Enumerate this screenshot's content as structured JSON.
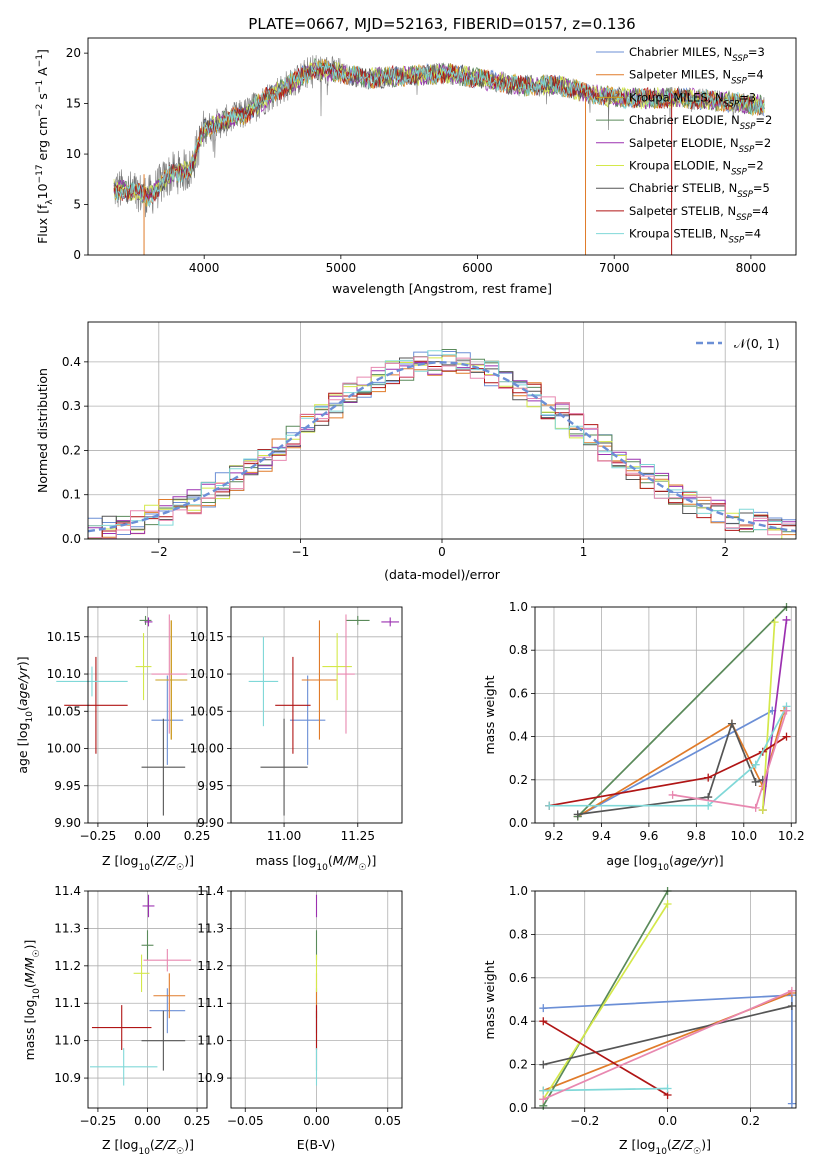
{
  "figure": {
    "title": "PLATE=0667, MJD=52163, FIBERID=0157, z=0.136"
  },
  "colors": {
    "Chabrier MILES": "#6b8fd6",
    "Salpeter MILES": "#e07b2a",
    "Kroupa MILES": "#c9a020",
    "Chabrier ELODIE": "#5a8a5a",
    "Salpeter ELODIE": "#9b30b0",
    "Kroupa ELODIE": "#d4e84a",
    "Chabrier STELIB": "#555555",
    "Salpeter STELIB": "#b01515",
    "Kroupa STELIB": "#80d8d8",
    "gaussian": "#6b8fd6",
    "pink": "#e888b0"
  },
  "chart_data": [
    {
      "type": "line",
      "panel": "spectrum",
      "title": "PLATE=0667, MJD=52163, FIBERID=0157, z=0.136",
      "xlabel": "wavelength [Angstrom, rest frame]",
      "ylabel_parts": [
        "Flux [f",
        "λ",
        "10",
        "−17",
        " erg cm",
        "−2",
        " s",
        "−1",
        " A",
        "−1",
        "]"
      ],
      "xlim": [
        3150,
        8330
      ],
      "ylim": [
        0,
        21.5
      ],
      "xticks": [
        4000,
        5000,
        6000,
        7000,
        8000
      ],
      "yticks": [
        0,
        5,
        10,
        15,
        20
      ],
      "grid": false,
      "legend_position": "top-right",
      "envelope": {
        "x": [
          3340,
          3500,
          3600,
          3750,
          3900,
          4000,
          4100,
          4300,
          4500,
          4700,
          4800,
          5000,
          5200,
          5500,
          5800,
          6000,
          6300,
          6600,
          6800,
          7000,
          7200,
          7500,
          7800,
          8100
        ],
        "y": [
          6.5,
          6.2,
          5.8,
          8.0,
          8.5,
          12.5,
          13.0,
          14.0,
          16.0,
          17.5,
          18.5,
          18.0,
          17.5,
          17.8,
          18.0,
          17.5,
          16.8,
          16.8,
          16.0,
          15.6,
          15.5,
          15.6,
          15.2,
          14.8
        ]
      },
      "series": [
        {
          "name": "Chabrier MILES",
          "nssp": "3"
        },
        {
          "name": "Salpeter MILES",
          "nssp": "4"
        },
        {
          "name": "Kroupa MILES",
          "nssp": "3"
        },
        {
          "name": "Chabrier ELODIE",
          "nssp": "2"
        },
        {
          "name": "Salpeter ELODIE",
          "nssp": "2"
        },
        {
          "name": "Kroupa ELODIE",
          "nssp": "2"
        },
        {
          "name": "Chabrier STELIB",
          "nssp": "5"
        },
        {
          "name": "Salpeter STELIB",
          "nssp": "4"
        },
        {
          "name": "Kroupa STELIB",
          "nssp": "4"
        }
      ]
    },
    {
      "type": "histogram",
      "panel": "residuals",
      "xlabel": "(data-model)/error",
      "ylabel": "Normed distribution",
      "xlim": [
        -2.5,
        2.5
      ],
      "ylim": [
        0,
        0.49
      ],
      "xticks": [
        -2,
        -1,
        0,
        1,
        2
      ],
      "yticks": [
        0.0,
        0.1,
        0.2,
        0.3,
        0.4
      ],
      "grid": true,
      "bin_width": 0.1,
      "legend_position": "top-right",
      "legend": "𝒩(0, 1)"
    },
    {
      "type": "errorbar",
      "panel": "age-vs-Z",
      "xlabel": "Z [log10(Z/Z☉)]",
      "ylabel": "age [log10(age/yr)]",
      "xlim": [
        -0.3,
        0.3
      ],
      "ylim": [
        9.9,
        10.19
      ],
      "xticks": [
        -0.25,
        0.0,
        0.25
      ],
      "yticks": [
        9.9,
        9.95,
        10.0,
        10.05,
        10.1,
        10.15
      ],
      "grid": true,
      "points": [
        {
          "series": "Chabrier MILES",
          "x": 0.1,
          "xerr": 0.08,
          "y": 10.038,
          "yerr": 0.06
        },
        {
          "series": "Salpeter MILES",
          "x": 0.12,
          "xerr": 0.08,
          "y": 10.092,
          "yerr": 0.08
        },
        {
          "series": "Kroupa MILES",
          "x": 0.12,
          "xerr": 0.08,
          "y": 10.092,
          "yerr": 0.08
        },
        {
          "series": "Chabrier ELODIE",
          "x": -0.01,
          "xerr": 0.03,
          "y": 10.172,
          "yerr": 0.006
        },
        {
          "series": "Salpeter ELODIE",
          "x": 0.005,
          "xerr": 0.02,
          "y": 10.17,
          "yerr": 0.006
        },
        {
          "series": "Kroupa ELODIE",
          "x": -0.02,
          "xerr": 0.04,
          "y": 10.11,
          "yerr": 0.045
        },
        {
          "series": "Chabrier STELIB",
          "x": 0.08,
          "xerr": 0.11,
          "y": 9.975,
          "yerr": 0.065
        },
        {
          "series": "Salpeter STELIB",
          "x": -0.26,
          "xerr": 0.16,
          "y": 10.058,
          "yerr": 0.065
        },
        {
          "series": "Kroupa STELIB",
          "x": -0.28,
          "xerr": 0.18,
          "y": 10.09,
          "yerr": 0.02
        },
        {
          "series": "pink",
          "x": 0.11,
          "xerr": 0.09,
          "y": 10.1,
          "yerr": 0.08
        }
      ]
    },
    {
      "type": "errorbar",
      "panel": "age-vs-mass",
      "xlabel": "mass [log10(M/M☉)]",
      "ylabel": "",
      "xlim": [
        10.82,
        11.4
      ],
      "ylim": [
        9.9,
        10.19
      ],
      "xticks": [
        11.0,
        11.25
      ],
      "yticks": [
        9.9,
        9.95,
        10.0,
        10.05,
        10.1,
        10.15
      ],
      "grid": true,
      "points": [
        {
          "series": "Chabrier MILES",
          "x": 11.08,
          "xerr": 0.06,
          "y": 10.038,
          "yerr": 0.06
        },
        {
          "series": "Salpeter MILES",
          "x": 11.12,
          "xerr": 0.06,
          "y": 10.092,
          "yerr": 0.08
        },
        {
          "series": "Chabrier ELODIE",
          "x": 11.25,
          "xerr": 0.04,
          "y": 10.172,
          "yerr": 0.006
        },
        {
          "series": "Salpeter ELODIE",
          "x": 11.36,
          "xerr": 0.03,
          "y": 10.17,
          "yerr": 0.006
        },
        {
          "series": "Kroupa ELODIE",
          "x": 11.18,
          "xerr": 0.05,
          "y": 10.11,
          "yerr": 0.045
        },
        {
          "series": "Chabrier STELIB",
          "x": 11.0,
          "xerr": 0.08,
          "y": 9.975,
          "yerr": 0.065
        },
        {
          "series": "Salpeter STELIB",
          "x": 11.03,
          "xerr": 0.06,
          "y": 10.058,
          "yerr": 0.065
        },
        {
          "series": "Kroupa STELIB",
          "x": 10.93,
          "xerr": 0.05,
          "y": 10.09,
          "yerr": 0.06
        },
        {
          "series": "pink",
          "x": 11.21,
          "xerr": 0.03,
          "y": 10.1,
          "yerr": 0.08
        }
      ]
    },
    {
      "type": "line",
      "panel": "weight-vs-age",
      "xlabel": "age [log10(age/yr)]",
      "ylabel": "mass weight",
      "xlim": [
        9.12,
        10.22
      ],
      "ylim": [
        0,
        1.0
      ],
      "xticks": [
        9.2,
        9.4,
        9.6,
        9.8,
        10.0,
        10.2
      ],
      "yticks": [
        0.0,
        0.2,
        0.4,
        0.6,
        0.8,
        1.0
      ],
      "grid": true,
      "series": [
        {
          "name": "Chabrier MILES",
          "x": [
            9.3,
            10.12
          ],
          "y": [
            0.03,
            0.52
          ]
        },
        {
          "name": "Salpeter MILES",
          "x": [
            9.3,
            9.95,
            10.08,
            10.17
          ],
          "y": [
            0.03,
            0.46,
            0.17,
            0.52
          ]
        },
        {
          "name": "Chabrier ELODIE",
          "x": [
            9.3,
            10.18
          ],
          "y": [
            0.03,
            1.0
          ]
        },
        {
          "name": "Salpeter ELODIE",
          "x": [
            10.08,
            10.18
          ],
          "y": [
            0.06,
            0.94
          ]
        },
        {
          "name": "Kroupa ELODIE",
          "x": [
            10.08,
            10.13
          ],
          "y": [
            0.06,
            0.93
          ]
        },
        {
          "name": "Chabrier STELIB",
          "x": [
            9.3,
            9.85,
            9.95,
            10.05,
            10.08
          ],
          "y": [
            0.04,
            0.12,
            0.46,
            0.19,
            0.2
          ]
        },
        {
          "name": "Salpeter STELIB",
          "x": [
            9.18,
            9.85,
            10.08,
            10.18
          ],
          "y": [
            0.08,
            0.21,
            0.33,
            0.4
          ]
        },
        {
          "name": "Kroupa STELIB",
          "x": [
            9.18,
            9.85,
            10.05,
            10.18
          ],
          "y": [
            0.08,
            0.08,
            0.27,
            0.54
          ]
        },
        {
          "name": "pink",
          "x": [
            9.7,
            10.05,
            10.18
          ],
          "y": [
            0.13,
            0.07,
            0.52
          ]
        }
      ]
    },
    {
      "type": "errorbar",
      "panel": "mass-vs-Z",
      "xlabel": "Z [log10(Z/Z☉)]",
      "ylabel": "mass [log10(M/M☉)]",
      "xlim": [
        -0.3,
        0.3
      ],
      "ylim": [
        10.82,
        11.4
      ],
      "xticks": [
        -0.25,
        0.0,
        0.25
      ],
      "yticks": [
        10.9,
        11.0,
        11.1,
        11.2,
        11.3,
        11.4
      ],
      "grid": true,
      "points": [
        {
          "series": "Chabrier MILES",
          "x": 0.1,
          "xerr": 0.09,
          "y": 11.08,
          "yerr": 0.06
        },
        {
          "series": "Salpeter MILES",
          "x": 0.11,
          "xerr": 0.08,
          "y": 11.12,
          "yerr": 0.06
        },
        {
          "series": "Chabrier ELODIE",
          "x": 0.0,
          "xerr": 0.03,
          "y": 11.255,
          "yerr": 0.04
        },
        {
          "series": "Salpeter ELODIE",
          "x": 0.005,
          "xerr": 0.03,
          "y": 11.36,
          "yerr": 0.03
        },
        {
          "series": "Kroupa ELODIE",
          "x": -0.03,
          "xerr": 0.04,
          "y": 11.18,
          "yerr": 0.05
        },
        {
          "series": "Chabrier STELIB",
          "x": 0.08,
          "xerr": 0.11,
          "y": 11.0,
          "yerr": 0.08
        },
        {
          "series": "Salpeter STELIB",
          "x": -0.13,
          "xerr": 0.15,
          "y": 11.035,
          "yerr": 0.06
        },
        {
          "series": "Kroupa STELIB",
          "x": -0.12,
          "xerr": 0.17,
          "y": 10.93,
          "yerr": 0.05
        },
        {
          "series": "pink",
          "x": 0.1,
          "xerr": 0.12,
          "y": 11.215,
          "yerr": 0.03
        }
      ]
    },
    {
      "type": "errorbar",
      "panel": "mass-vs-EBV",
      "xlabel": "E(B-V)",
      "ylabel": "",
      "xlim": [
        -0.06,
        0.06
      ],
      "ylim": [
        10.82,
        11.4
      ],
      "xticks": [
        -0.05,
        0.0,
        0.05
      ],
      "yticks": [
        10.9,
        11.0,
        11.1,
        11.2,
        11.3,
        11.4
      ],
      "grid": true,
      "points": [
        {
          "series": "Chabrier MILES",
          "x": 0.0,
          "xerr": 0.0,
          "y": 11.08,
          "yerr": 0.06
        },
        {
          "series": "Salpeter MILES",
          "x": 0.0,
          "xerr": 0.0,
          "y": 11.12,
          "yerr": 0.06
        },
        {
          "series": "Chabrier ELODIE",
          "x": 0.0,
          "xerr": 0.0,
          "y": 11.255,
          "yerr": 0.04
        },
        {
          "series": "Salpeter ELODIE",
          "x": 0.0,
          "xerr": 0.0,
          "y": 11.36,
          "yerr": 0.03
        },
        {
          "series": "Kroupa ELODIE",
          "x": 0.0,
          "xerr": 0.0,
          "y": 11.18,
          "yerr": 0.05
        },
        {
          "series": "Chabrier STELIB",
          "x": 0.0,
          "xerr": 0.0,
          "y": 11.0,
          "yerr": 0.08
        },
        {
          "series": "Salpeter STELIB",
          "x": 0.0,
          "xerr": 0.0,
          "y": 11.035,
          "yerr": 0.06
        },
        {
          "series": "Kroupa STELIB",
          "x": 0.0,
          "xerr": 0.0,
          "y": 10.93,
          "yerr": 0.05
        }
      ]
    },
    {
      "type": "line",
      "panel": "weight-vs-Z",
      "xlabel": "Z [log10(Z/Z☉)]",
      "ylabel": "mass weight",
      "xlim": [
        -0.32,
        0.31
      ],
      "ylim": [
        0,
        1.0
      ],
      "xticks": [
        -0.2,
        0.0,
        0.2
      ],
      "yticks": [
        0.0,
        0.2,
        0.4,
        0.6,
        0.8,
        1.0
      ],
      "grid": true,
      "series": [
        {
          "name": "Chabrier MILES",
          "x": [
            -0.3,
            0.3,
            0.3
          ],
          "y": [
            0.46,
            0.52,
            0.02
          ]
        },
        {
          "name": "Salpeter MILES",
          "x": [
            -0.3,
            0.3
          ],
          "y": [
            0.08,
            0.53
          ]
        },
        {
          "name": "Chabrier ELODIE",
          "x": [
            -0.3,
            0.0
          ],
          "y": [
            0.01,
            1.0
          ]
        },
        {
          "name": "Kroupa ELODIE",
          "x": [
            -0.3,
            0.0
          ],
          "y": [
            0.04,
            0.94
          ]
        },
        {
          "name": "Chabrier STELIB",
          "x": [
            -0.3,
            0.3
          ],
          "y": [
            0.2,
            0.47
          ]
        },
        {
          "name": "Salpeter STELIB",
          "x": [
            -0.3,
            0.0
          ],
          "y": [
            0.4,
            0.06
          ]
        },
        {
          "name": "Kroupa STELIB",
          "x": [
            -0.3,
            0.0
          ],
          "y": [
            0.08,
            0.09
          ]
        },
        {
          "name": "pink",
          "x": [
            -0.3,
            0.3
          ],
          "y": [
            0.04,
            0.54
          ]
        }
      ]
    }
  ]
}
